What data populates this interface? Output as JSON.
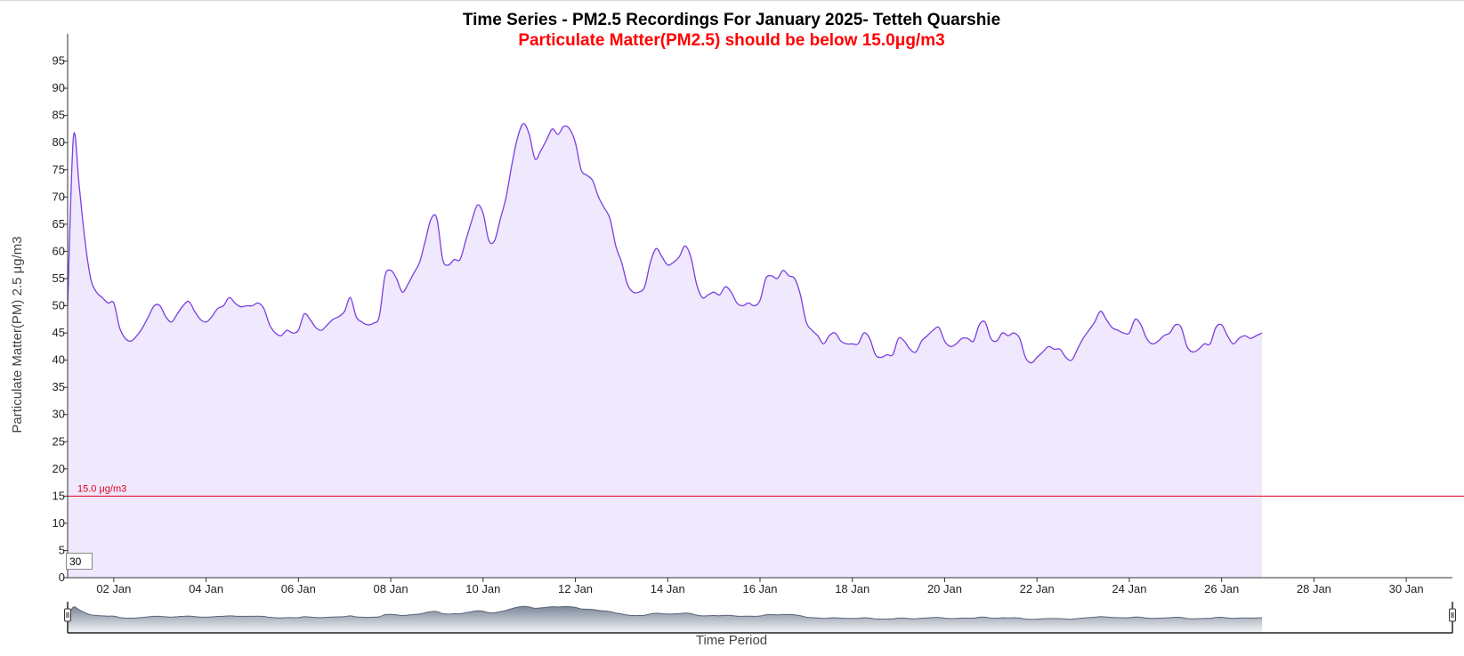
{
  "chart_data": {
    "type": "area",
    "title": "Time Series - PM2.5 Recordings For January 2025- Tetteh Quarshie",
    "subtitle": "Particulate Matter(PM2.5) should be below 15.0μg/m3",
    "xlabel": "Time Period",
    "ylabel": "Particulate Matter(PM) 2.5 μg/m3",
    "x_range": [
      "2025-01-01",
      "2025-01-31"
    ],
    "ylim": [
      0,
      100
    ],
    "y_ticks": [
      0,
      5,
      10,
      15,
      20,
      25,
      30,
      35,
      40,
      45,
      50,
      55,
      60,
      65,
      70,
      75,
      80,
      85,
      90,
      95
    ],
    "x_ticks": [
      "02 Jan",
      "04 Jan",
      "06 Jan",
      "08 Jan",
      "10 Jan",
      "12 Jan",
      "14 Jan",
      "16 Jan",
      "18 Jan",
      "20 Jan",
      "22 Jan",
      "24 Jan",
      "26 Jan",
      "28 Jan",
      "30 Jan"
    ],
    "grid": false,
    "threshold": {
      "value": 15,
      "label": "15.0 μg/m3",
      "color": "#e0001b"
    },
    "series": [
      {
        "line_color": "#7a3fe0",
        "fill_color": "#f0e8fd",
        "points": [
          [
            "2025-01-01T00:00",
            50.0
          ],
          [
            "2025-01-01T03:00",
            81.0
          ],
          [
            "2025-01-01T06:00",
            72.0
          ],
          [
            "2025-01-01T09:00",
            62.0
          ],
          [
            "2025-01-01T12:00",
            55.0
          ],
          [
            "2025-01-01T15:00",
            52.5
          ],
          [
            "2025-01-01T18:00",
            51.5
          ],
          [
            "2025-01-01T21:00",
            50.5
          ],
          [
            "2025-01-02T00:00",
            50.5
          ],
          [
            "2025-01-02T03:00",
            46.0
          ],
          [
            "2025-01-02T06:00",
            44.0
          ],
          [
            "2025-01-02T09:00",
            43.5
          ],
          [
            "2025-01-02T12:00",
            44.5
          ],
          [
            "2025-01-02T15:00",
            46.0
          ],
          [
            "2025-01-02T18:00",
            48.0
          ],
          [
            "2025-01-02T21:00",
            50.0
          ],
          [
            "2025-01-03T00:00",
            50.0
          ],
          [
            "2025-01-03T03:00",
            48.0
          ],
          [
            "2025-01-03T06:00",
            47.0
          ],
          [
            "2025-01-03T09:00",
            48.5
          ],
          [
            "2025-01-03T12:00",
            50.0
          ],
          [
            "2025-01-03T15:00",
            50.8
          ],
          [
            "2025-01-03T18:00",
            49.0
          ],
          [
            "2025-01-03T21:00",
            47.5
          ],
          [
            "2025-01-04T00:00",
            47.0
          ],
          [
            "2025-01-04T03:00",
            48.0
          ],
          [
            "2025-01-04T06:00",
            49.5
          ],
          [
            "2025-01-04T09:00",
            50.0
          ],
          [
            "2025-01-04T12:00",
            51.5
          ],
          [
            "2025-01-04T15:00",
            50.5
          ],
          [
            "2025-01-04T18:00",
            49.8
          ],
          [
            "2025-01-04T21:00",
            50.0
          ],
          [
            "2025-01-05T00:00",
            50.0
          ],
          [
            "2025-01-05T03:00",
            50.5
          ],
          [
            "2025-01-05T06:00",
            49.5
          ],
          [
            "2025-01-05T09:00",
            46.5
          ],
          [
            "2025-01-05T12:00",
            45.0
          ],
          [
            "2025-01-05T15:00",
            44.5
          ],
          [
            "2025-01-05T18:00",
            45.5
          ],
          [
            "2025-01-05T21:00",
            45.0
          ],
          [
            "2025-01-06T00:00",
            45.5
          ],
          [
            "2025-01-06T03:00",
            48.5
          ],
          [
            "2025-01-06T06:00",
            47.5
          ],
          [
            "2025-01-06T09:00",
            46.0
          ],
          [
            "2025-01-06T12:00",
            45.5
          ],
          [
            "2025-01-06T15:00",
            46.5
          ],
          [
            "2025-01-06T18:00",
            47.5
          ],
          [
            "2025-01-06T21:00",
            48.0
          ],
          [
            "2025-01-07T00:00",
            49.0
          ],
          [
            "2025-01-07T03:00",
            51.5
          ],
          [
            "2025-01-07T06:00",
            48.0
          ],
          [
            "2025-01-07T09:00",
            47.0
          ],
          [
            "2025-01-07T12:00",
            46.5
          ],
          [
            "2025-01-07T15:00",
            46.8
          ],
          [
            "2025-01-07T18:00",
            48.0
          ],
          [
            "2025-01-07T21:00",
            55.5
          ],
          [
            "2025-01-08T00:00",
            56.5
          ],
          [
            "2025-01-08T03:00",
            55.0
          ],
          [
            "2025-01-08T06:00",
            52.5
          ],
          [
            "2025-01-08T09:00",
            54.0
          ],
          [
            "2025-01-08T12:00",
            56.0
          ],
          [
            "2025-01-08T15:00",
            58.0
          ],
          [
            "2025-01-08T18:00",
            62.0
          ],
          [
            "2025-01-08T21:00",
            66.0
          ],
          [
            "2025-01-09T00:00",
            66.0
          ],
          [
            "2025-01-09T03:00",
            58.5
          ],
          [
            "2025-01-09T06:00",
            57.5
          ],
          [
            "2025-01-09T09:00",
            58.5
          ],
          [
            "2025-01-09T12:00",
            58.5
          ],
          [
            "2025-01-09T15:00",
            62.0
          ],
          [
            "2025-01-09T18:00",
            65.5
          ],
          [
            "2025-01-09T21:00",
            68.5
          ],
          [
            "2025-01-10T00:00",
            67.0
          ],
          [
            "2025-01-10T03:00",
            62.0
          ],
          [
            "2025-01-10T06:00",
            62.0
          ],
          [
            "2025-01-10T09:00",
            66.0
          ],
          [
            "2025-01-10T12:00",
            70.0
          ],
          [
            "2025-01-10T15:00",
            76.0
          ],
          [
            "2025-01-10T18:00",
            81.0
          ],
          [
            "2025-01-10T21:00",
            83.5
          ],
          [
            "2025-01-11T00:00",
            81.5
          ],
          [
            "2025-01-11T03:00",
            77.0
          ],
          [
            "2025-01-11T06:00",
            78.5
          ],
          [
            "2025-01-11T09:00",
            80.5
          ],
          [
            "2025-01-11T12:00",
            82.5
          ],
          [
            "2025-01-11T15:00",
            81.5
          ],
          [
            "2025-01-11T18:00",
            83.0
          ],
          [
            "2025-01-11T21:00",
            82.5
          ],
          [
            "2025-01-12T00:00",
            80.0
          ],
          [
            "2025-01-12T03:00",
            75.0
          ],
          [
            "2025-01-12T06:00",
            74.0
          ],
          [
            "2025-01-12T09:00",
            73.0
          ],
          [
            "2025-01-12T12:00",
            70.0
          ],
          [
            "2025-01-12T15:00",
            68.0
          ],
          [
            "2025-01-12T18:00",
            66.0
          ],
          [
            "2025-01-12T21:00",
            61.0
          ],
          [
            "2025-01-13T00:00",
            58.0
          ],
          [
            "2025-01-13T03:00",
            54.0
          ],
          [
            "2025-01-13T06:00",
            52.5
          ],
          [
            "2025-01-13T09:00",
            52.5
          ],
          [
            "2025-01-13T12:00",
            53.5
          ],
          [
            "2025-01-13T15:00",
            58.0
          ],
          [
            "2025-01-13T18:00",
            60.5
          ],
          [
            "2025-01-13T21:00",
            59.0
          ],
          [
            "2025-01-14T00:00",
            57.5
          ],
          [
            "2025-01-14T03:00",
            58.0
          ],
          [
            "2025-01-14T06:00",
            59.0
          ],
          [
            "2025-01-14T09:00",
            61.0
          ],
          [
            "2025-01-14T12:00",
            59.0
          ],
          [
            "2025-01-14T15:00",
            54.0
          ],
          [
            "2025-01-14T18:00",
            51.5
          ],
          [
            "2025-01-14T21:00",
            52.0
          ],
          [
            "2025-01-15T00:00",
            52.5
          ],
          [
            "2025-01-15T03:00",
            52.0
          ],
          [
            "2025-01-15T06:00",
            53.5
          ],
          [
            "2025-01-15T09:00",
            52.5
          ],
          [
            "2025-01-15T12:00",
            50.5
          ],
          [
            "2025-01-15T15:00",
            50.0
          ],
          [
            "2025-01-15T18:00",
            50.5
          ],
          [
            "2025-01-15T21:00",
            50.0
          ],
          [
            "2025-01-16T00:00",
            51.0
          ],
          [
            "2025-01-16T03:00",
            55.0
          ],
          [
            "2025-01-16T06:00",
            55.5
          ],
          [
            "2025-01-16T09:00",
            55.0
          ],
          [
            "2025-01-16T12:00",
            56.5
          ],
          [
            "2025-01-16T15:00",
            55.5
          ],
          [
            "2025-01-16T18:00",
            55.0
          ],
          [
            "2025-01-16T21:00",
            52.0
          ],
          [
            "2025-01-17T00:00",
            47.0
          ],
          [
            "2025-01-17T03:00",
            45.5
          ],
          [
            "2025-01-17T06:00",
            44.5
          ],
          [
            "2025-01-17T09:00",
            43.0
          ],
          [
            "2025-01-17T12:00",
            44.5
          ],
          [
            "2025-01-17T15:00",
            45.0
          ],
          [
            "2025-01-17T18:00",
            43.5
          ],
          [
            "2025-01-17T21:00",
            43.0
          ],
          [
            "2025-01-18T00:00",
            43.0
          ],
          [
            "2025-01-18T03:00",
            43.0
          ],
          [
            "2025-01-18T06:00",
            45.0
          ],
          [
            "2025-01-18T09:00",
            44.0
          ],
          [
            "2025-01-18T12:00",
            41.0
          ],
          [
            "2025-01-18T15:00",
            40.5
          ],
          [
            "2025-01-18T18:00",
            41.0
          ],
          [
            "2025-01-18T21:00",
            41.0
          ],
          [
            "2025-01-19T00:00",
            44.0
          ],
          [
            "2025-01-19T03:00",
            43.5
          ],
          [
            "2025-01-19T06:00",
            42.0
          ],
          [
            "2025-01-19T09:00",
            41.5
          ],
          [
            "2025-01-19T12:00",
            43.5
          ],
          [
            "2025-01-19T15:00",
            44.5
          ],
          [
            "2025-01-19T18:00",
            45.5
          ],
          [
            "2025-01-19T21:00",
            46.0
          ],
          [
            "2025-01-20T00:00",
            43.5
          ],
          [
            "2025-01-20T03:00",
            42.5
          ],
          [
            "2025-01-20T06:00",
            43.0
          ],
          [
            "2025-01-20T09:00",
            44.0
          ],
          [
            "2025-01-20T12:00",
            44.0
          ],
          [
            "2025-01-20T15:00",
            43.5
          ],
          [
            "2025-01-20T18:00",
            46.5
          ],
          [
            "2025-01-20T21:00",
            47.0
          ],
          [
            "2025-01-21T00:00",
            44.0
          ],
          [
            "2025-01-21T03:00",
            43.5
          ],
          [
            "2025-01-21T06:00",
            45.0
          ],
          [
            "2025-01-21T09:00",
            44.5
          ],
          [
            "2025-01-21T12:00",
            45.0
          ],
          [
            "2025-01-21T15:00",
            44.0
          ],
          [
            "2025-01-21T18:00",
            40.5
          ],
          [
            "2025-01-21T21:00",
            39.5
          ],
          [
            "2025-01-22T00:00",
            40.5
          ],
          [
            "2025-01-22T03:00",
            41.5
          ],
          [
            "2025-01-22T06:00",
            42.5
          ],
          [
            "2025-01-22T09:00",
            42.0
          ],
          [
            "2025-01-22T12:00",
            42.0
          ],
          [
            "2025-01-22T15:00",
            40.5
          ],
          [
            "2025-01-22T18:00",
            40.0
          ],
          [
            "2025-01-22T21:00",
            42.0
          ],
          [
            "2025-01-23T00:00",
            44.0
          ],
          [
            "2025-01-23T03:00",
            45.5
          ],
          [
            "2025-01-23T06:00",
            47.0
          ],
          [
            "2025-01-23T09:00",
            49.0
          ],
          [
            "2025-01-23T12:00",
            47.5
          ],
          [
            "2025-01-23T15:00",
            46.0
          ],
          [
            "2025-01-23T18:00",
            45.5
          ],
          [
            "2025-01-23T21:00",
            45.0
          ],
          [
            "2025-01-24T00:00",
            45.0
          ],
          [
            "2025-01-24T03:00",
            47.5
          ],
          [
            "2025-01-24T06:00",
            46.5
          ],
          [
            "2025-01-24T09:00",
            44.0
          ],
          [
            "2025-01-24T12:00",
            43.0
          ],
          [
            "2025-01-24T15:00",
            43.5
          ],
          [
            "2025-01-24T18:00",
            44.5
          ],
          [
            "2025-01-24T21:00",
            45.0
          ],
          [
            "2025-01-25T00:00",
            46.5
          ],
          [
            "2025-01-25T03:00",
            46.0
          ],
          [
            "2025-01-25T06:00",
            42.5
          ],
          [
            "2025-01-25T09:00",
            41.5
          ],
          [
            "2025-01-25T12:00",
            42.0
          ],
          [
            "2025-01-25T15:00",
            43.0
          ],
          [
            "2025-01-25T18:00",
            43.0
          ],
          [
            "2025-01-25T21:00",
            46.0
          ],
          [
            "2025-01-26T00:00",
            46.5
          ],
          [
            "2025-01-26T03:00",
            44.5
          ],
          [
            "2025-01-26T06:00",
            43.0
          ],
          [
            "2025-01-26T09:00",
            44.0
          ],
          [
            "2025-01-26T12:00",
            44.5
          ],
          [
            "2025-01-26T15:00",
            44.0
          ],
          [
            "2025-01-26T18:00",
            44.5
          ],
          [
            "2025-01-26T21:00",
            45.0
          ]
        ]
      }
    ],
    "navigator": {
      "min_label": "30"
    }
  }
}
